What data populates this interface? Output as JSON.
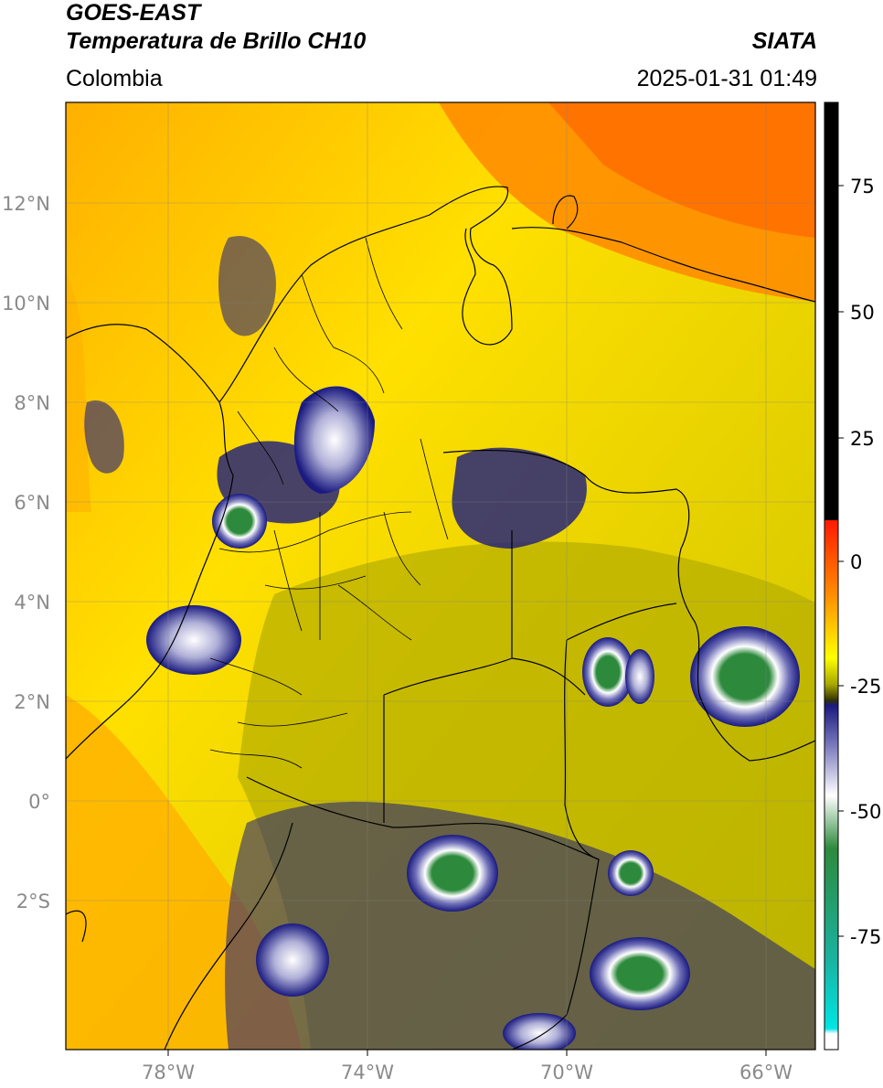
{
  "header": {
    "satellite": "GOES-EAST",
    "product": "Temperatura de Brillo CH10",
    "brand": "SIATA",
    "region": "Colombia",
    "datetime": "2025-01-31 01:49"
  },
  "map": {
    "lat_labels": [
      "12°N",
      "10°N",
      "8°N",
      "6°N",
      "4°N",
      "2°N",
      "0°",
      "2°S"
    ],
    "lon_labels": [
      "78°W",
      "74°W",
      "70°W",
      "66°W"
    ]
  },
  "colorbar": {
    "ticks": [
      "75",
      "50",
      "25",
      "0",
      "-25",
      "-50",
      "-75"
    ],
    "colors": {
      "black": "#000000",
      "red": "#ff1a00",
      "orange": "#ff8c00",
      "yellow": "#ffff00",
      "olive": "#a8a800",
      "navy": "#1a1a80",
      "white": "#ffffff",
      "green": "#2d8a3c",
      "teal": "#1ab3a0",
      "cyan": "#00e5e5"
    }
  }
}
